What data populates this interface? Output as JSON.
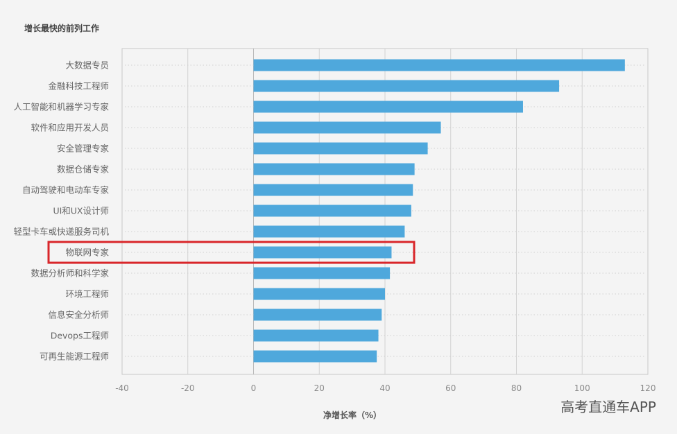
{
  "chart_data": {
    "type": "bar",
    "orientation": "horizontal",
    "title": "增长最快的前列工作",
    "xlabel": "净增长率（%）",
    "ylabel": "",
    "xlim": [
      -40,
      120
    ],
    "xticks": [
      -40,
      -20,
      0,
      20,
      40,
      60,
      80,
      100,
      120
    ],
    "grid": true,
    "categories": [
      "大数据专员",
      "金融科技工程师",
      "人工智能和机器学习专家",
      "软件和应用开发人员",
      "安全管理专家",
      "数据仓储专家",
      "自动驾驶和电动车专家",
      "UI和UX设计师",
      "轻型卡车或快递服务司机",
      "物联网专家",
      "数据分析师和科学家",
      "环境工程师",
      "信息安全分析师",
      "Devops工程师",
      "可再生能源工程师"
    ],
    "values": [
      113,
      93,
      82,
      57,
      53,
      49,
      48.5,
      48,
      46,
      42,
      41.5,
      40,
      39,
      38,
      37.5
    ],
    "bar_color": "#4fa8dc",
    "highlight": {
      "category": "物联网专家",
      "color": "#d9262a"
    }
  },
  "watermark": "高考直通车APP"
}
